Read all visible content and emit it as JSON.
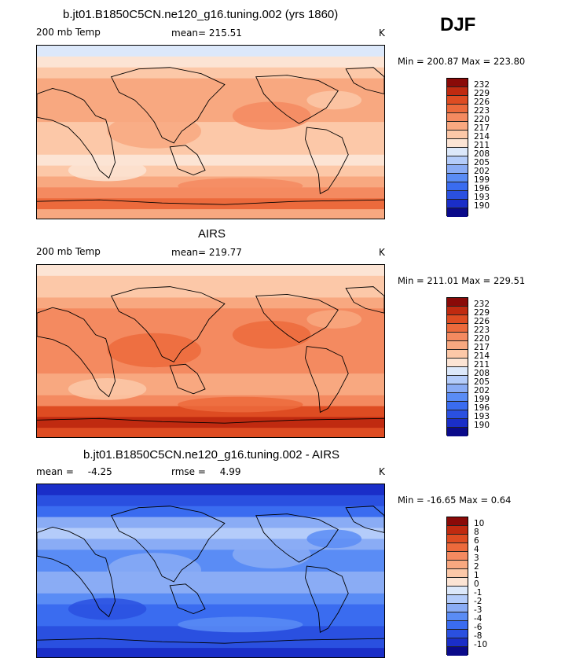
{
  "season": "DJF",
  "colors": {
    "scale": [
      "#0a0a8a",
      "#1a2ec8",
      "#2a50e0",
      "#3a6cf0",
      "#5a8cf5",
      "#8aacf5",
      "#b4ccfa",
      "#dce8fa",
      "#fce4d4",
      "#fcc8a8",
      "#f8a880",
      "#f48a60",
      "#ec6a3c",
      "#de4c22",
      "#c02a10",
      "#8a0a08"
    ],
    "continent_outline": "#000000"
  },
  "panels": [
    {
      "id": "model",
      "title": "b.jt01.B1850C5CN.ne120_g16.tuning.002 (yrs 1860)",
      "left_label": "200 mb Temp",
      "stat_label": "mean=",
      "stat_value": "215.51",
      "stat2_label": "",
      "stat2_value": "",
      "units": "K",
      "minmax": "Min = 200.87 Max = 223.80",
      "colorbar_levels": [
        "232",
        "229",
        "226",
        "223",
        "220",
        "217",
        "214",
        "211",
        "208",
        "205",
        "202",
        "199",
        "196",
        "193",
        "190"
      ],
      "field_bands": [
        7,
        8,
        9,
        10,
        10,
        10,
        10,
        9,
        9,
        9,
        8,
        9,
        10,
        11,
        12,
        10
      ]
    },
    {
      "id": "obs",
      "title": "AIRS",
      "left_label": "200 mb Temp",
      "stat_label": "mean=",
      "stat_value": "219.77",
      "stat2_label": "",
      "stat2_value": "",
      "units": "K",
      "minmax": "Min = 211.01 Max = 229.51",
      "colorbar_levels": [
        "232",
        "229",
        "226",
        "223",
        "220",
        "217",
        "214",
        "211",
        "208",
        "205",
        "202",
        "199",
        "196",
        "193",
        "190"
      ],
      "field_bands": [
        8,
        9,
        9,
        10,
        11,
        11,
        11,
        11,
        11,
        11,
        10,
        10,
        11,
        13,
        14,
        13
      ]
    },
    {
      "id": "diff",
      "title": "b.jt01.B1850C5CN.ne120_g16.tuning.002 - AIRS",
      "left_label": "",
      "stat_label": "mean =",
      "stat_value": "-4.25",
      "stat2_label": "rmse =",
      "stat2_value": "4.99",
      "units": "K",
      "minmax": "Min = -16.65 Max =    0.64",
      "colorbar_levels": [
        "10",
        "8",
        "6",
        "4",
        "3",
        "2",
        "1",
        "0",
        "-1",
        "-2",
        "-3",
        "-4",
        "-6",
        "-8",
        "-10"
      ],
      "field_bands": [
        1,
        2,
        3,
        5,
        6,
        5,
        4,
        4,
        5,
        5,
        4,
        3,
        3,
        2,
        2,
        1
      ]
    }
  ],
  "chart_data": [
    {
      "type": "heatmap",
      "title": "b.jt01.B1850C5CN.ne120_g16.tuning.002 (yrs 1860)",
      "variable": "200 mb Temp",
      "units": "K",
      "mean": 215.51,
      "min": 200.87,
      "max": 223.8,
      "levels": [
        190,
        193,
        196,
        199,
        202,
        205,
        208,
        211,
        214,
        217,
        220,
        223,
        226,
        229,
        232
      ]
    },
    {
      "type": "heatmap",
      "title": "AIRS",
      "variable": "200 mb Temp",
      "units": "K",
      "mean": 219.77,
      "min": 211.01,
      "max": 229.51,
      "levels": [
        190,
        193,
        196,
        199,
        202,
        205,
        208,
        211,
        214,
        217,
        220,
        223,
        226,
        229,
        232
      ]
    },
    {
      "type": "heatmap",
      "title": "b.jt01.B1850C5CN.ne120_g16.tuning.002 - AIRS",
      "units": "K",
      "mean": -4.25,
      "rmse": 4.99,
      "min": -16.65,
      "max": 0.64,
      "levels": [
        -10,
        -8,
        -6,
        -4,
        -3,
        -2,
        -1,
        0,
        1,
        2,
        3,
        4,
        6,
        8,
        10
      ]
    }
  ]
}
